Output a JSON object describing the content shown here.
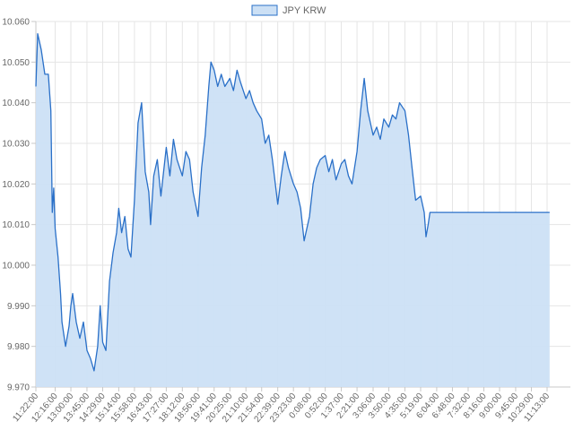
{
  "chart_data": {
    "type": "area",
    "legend": {
      "label": "JPY KRW",
      "position": "top"
    },
    "series": [
      {
        "name": "JPY KRW",
        "color": "#2a70c8",
        "fill": "#cce0f5",
        "points": [
          [
            "11:22:00",
            10.044
          ],
          [
            "11:27:00",
            10.057
          ],
          [
            "11:37:00",
            10.053
          ],
          [
            "11:47:00",
            10.047
          ],
          [
            "11:57:00",
            10.047
          ],
          [
            "12:04:00",
            10.038
          ],
          [
            "12:08:00",
            10.013
          ],
          [
            "12:12:00",
            10.019
          ],
          [
            "12:16:00",
            10.009
          ],
          [
            "12:24:00",
            10.002
          ],
          [
            "12:31:00",
            9.993
          ],
          [
            "12:35:00",
            9.986
          ],
          [
            "12:45:00",
            9.98
          ],
          [
            "12:55:00",
            9.985
          ],
          [
            "13:00:00",
            9.99
          ],
          [
            "13:05:00",
            9.993
          ],
          [
            "13:15:00",
            9.986
          ],
          [
            "13:25:00",
            9.982
          ],
          [
            "13:35:00",
            9.986
          ],
          [
            "13:45:00",
            9.979
          ],
          [
            "13:55:00",
            9.977
          ],
          [
            "14:05:00",
            9.974
          ],
          [
            "14:15:00",
            9.98
          ],
          [
            "14:22:00",
            9.99
          ],
          [
            "14:29:00",
            9.981
          ],
          [
            "14:38:00",
            9.979
          ],
          [
            "14:48:00",
            9.996
          ],
          [
            "14:58:00",
            10.003
          ],
          [
            "15:08:00",
            10.008
          ],
          [
            "15:14:00",
            10.014
          ],
          [
            "15:22:00",
            10.008
          ],
          [
            "15:31:00",
            10.012
          ],
          [
            "15:40:00",
            10.004
          ],
          [
            "15:48:00",
            10.002
          ],
          [
            "15:58:00",
            10.016
          ],
          [
            "16:08:00",
            10.035
          ],
          [
            "16:18:00",
            10.04
          ],
          [
            "16:28:00",
            10.023
          ],
          [
            "16:38:00",
            10.018
          ],
          [
            "16:43:00",
            10.01
          ],
          [
            "16:52:00",
            10.022
          ],
          [
            "17:02:00",
            10.026
          ],
          [
            "17:12:00",
            10.017
          ],
          [
            "17:27:00",
            10.029
          ],
          [
            "17:37:00",
            10.022
          ],
          [
            "17:47:00",
            10.031
          ],
          [
            "17:57:00",
            10.026
          ],
          [
            "18:12:00",
            10.022
          ],
          [
            "18:22:00",
            10.028
          ],
          [
            "18:32:00",
            10.026
          ],
          [
            "18:42:00",
            10.018
          ],
          [
            "18:56:00",
            10.012
          ],
          [
            "19:06:00",
            10.024
          ],
          [
            "19:16:00",
            10.032
          ],
          [
            "19:26:00",
            10.044
          ],
          [
            "19:32:00",
            10.05
          ],
          [
            "19:41:00",
            10.048
          ],
          [
            "19:51:00",
            10.044
          ],
          [
            "20:01:00",
            10.047
          ],
          [
            "20:11:00",
            10.044
          ],
          [
            "20:25:00",
            10.046
          ],
          [
            "20:35:00",
            10.043
          ],
          [
            "20:45:00",
            10.048
          ],
          [
            "20:55:00",
            10.045
          ],
          [
            "21:10:00",
            10.041
          ],
          [
            "21:20:00",
            10.043
          ],
          [
            "21:30:00",
            10.04
          ],
          [
            "21:40:00",
            10.038
          ],
          [
            "21:54:00",
            10.036
          ],
          [
            "22:04:00",
            10.03
          ],
          [
            "22:14:00",
            10.032
          ],
          [
            "22:24:00",
            10.026
          ],
          [
            "22:39:00",
            10.015
          ],
          [
            "22:49:00",
            10.022
          ],
          [
            "22:59:00",
            10.028
          ],
          [
            "23:09:00",
            10.024
          ],
          [
            "23:23:00",
            10.02
          ],
          [
            "23:33:00",
            10.018
          ],
          [
            "23:43:00",
            10.014
          ],
          [
            "23:53:00",
            10.006
          ],
          [
            "0:08:00",
            10.012
          ],
          [
            "0:18:00",
            10.02
          ],
          [
            "0:28:00",
            10.024
          ],
          [
            "0:38:00",
            10.026
          ],
          [
            "0:52:00",
            10.027
          ],
          [
            "1:02:00",
            10.023
          ],
          [
            "1:12:00",
            10.026
          ],
          [
            "1:22:00",
            10.021
          ],
          [
            "1:37:00",
            10.025
          ],
          [
            "1:47:00",
            10.026
          ],
          [
            "1:57:00",
            10.022
          ],
          [
            "2:07:00",
            10.02
          ],
          [
            "2:21:00",
            10.028
          ],
          [
            "2:31:00",
            10.038
          ],
          [
            "2:41:00",
            10.046
          ],
          [
            "2:51:00",
            10.038
          ],
          [
            "3:06:00",
            10.032
          ],
          [
            "3:16:00",
            10.034
          ],
          [
            "3:26:00",
            10.031
          ],
          [
            "3:36:00",
            10.036
          ],
          [
            "3:50:00",
            10.034
          ],
          [
            "4:00:00",
            10.037
          ],
          [
            "4:10:00",
            10.036
          ],
          [
            "4:20:00",
            10.04
          ],
          [
            "4:35:00",
            10.038
          ],
          [
            "4:45:00",
            10.032
          ],
          [
            "4:55:00",
            10.024
          ],
          [
            "5:05:00",
            10.016
          ],
          [
            "5:19:00",
            10.017
          ],
          [
            "5:29:00",
            10.013
          ],
          [
            "5:34:00",
            10.007
          ],
          [
            "5:40:00",
            10.01
          ],
          [
            "5:45:00",
            10.013
          ],
          [
            "5:50:00",
            10.013
          ],
          [
            "6:04:00",
            10.013
          ],
          [
            "6:48:00",
            10.013
          ],
          [
            "7:32:00",
            10.013
          ],
          [
            "8:16:00",
            10.013
          ],
          [
            "9:00:00",
            10.013
          ],
          [
            "9:45:00",
            10.013
          ],
          [
            "10:29:00",
            10.013
          ],
          [
            "11:13:00",
            10.013
          ],
          [
            "11:20:00",
            10.013
          ]
        ]
      }
    ],
    "x_ticks": [
      "11:22:00",
      "12:16:00",
      "13:00:00",
      "13:45:00",
      "14:29:00",
      "15:14:00",
      "15:58:00",
      "16:43:00",
      "17:27:00",
      "18:12:00",
      "18:56:00",
      "19:41:00",
      "20:25:00",
      "21:10:00",
      "21:54:00",
      "22:39:00",
      "23:23:00",
      "0:08:00",
      "0:52:00",
      "1:37:00",
      "2:21:00",
      "3:06:00",
      "3:50:00",
      "4:35:00",
      "5:19:00",
      "6:04:00",
      "6:48:00",
      "7:32:00",
      "8:16:00",
      "9:00:00",
      "9:45:00",
      "10:29:00",
      "11:13:00"
    ],
    "y_ticks": [
      "9.970",
      "9.980",
      "9.990",
      "10.000",
      "10.010",
      "10.020",
      "10.030",
      "10.040",
      "10.050",
      "10.060"
    ],
    "ylim": [
      9.97,
      10.06
    ],
    "grid": true,
    "grid_color": "#e5e5e5",
    "axis_color": "#c8c8c8",
    "text_color": "#666666"
  }
}
